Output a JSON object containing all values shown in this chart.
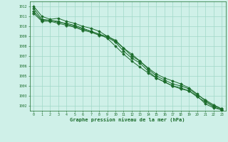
{
  "background_color": "#cff0e8",
  "grid_color": "#a0d8c8",
  "line_color": "#1a6b2a",
  "xlabel": "Graphe pression niveau de la mer (hPa)",
  "xlabel_color": "#1a6b2a",
  "tick_color": "#1a6b2a",
  "xlim": [
    -0.5,
    23.5
  ],
  "ylim": [
    1001.5,
    1012.5
  ],
  "yticks": [
    1002,
    1003,
    1004,
    1005,
    1006,
    1007,
    1008,
    1009,
    1010,
    1011,
    1012
  ],
  "xticks": [
    0,
    1,
    2,
    3,
    4,
    5,
    6,
    7,
    8,
    9,
    10,
    11,
    12,
    13,
    14,
    15,
    16,
    17,
    18,
    19,
    20,
    21,
    22,
    23
  ],
  "series": [
    {
      "x": [
        0,
        1,
        2,
        3,
        4,
        5,
        6,
        7,
        8,
        9,
        10,
        11,
        12,
        13,
        14,
        15,
        16,
        17,
        18,
        19,
        20,
        21,
        22,
        23
      ],
      "y": [
        1012.0,
        1011.0,
        1010.7,
        1010.8,
        1010.5,
        1010.3,
        1010.0,
        1009.8,
        1009.5,
        1009.0,
        1008.5,
        1007.8,
        1007.2,
        1006.5,
        1005.8,
        1005.2,
        1004.8,
        1004.5,
        1004.2,
        1003.8,
        1003.2,
        1002.5,
        1002.0,
        1001.7
      ],
      "marker": "D",
      "markersize": 1.8,
      "linewidth": 0.7
    },
    {
      "x": [
        0,
        1,
        2,
        3,
        4,
        5,
        6,
        7,
        8,
        9,
        10,
        11,
        12,
        13,
        14,
        15,
        16,
        17,
        18,
        19,
        20,
        21,
        22,
        23
      ],
      "y": [
        1011.8,
        1010.7,
        1010.6,
        1010.5,
        1010.2,
        1010.0,
        1009.7,
        1009.5,
        1009.2,
        1008.8,
        1008.0,
        1007.2,
        1006.5,
        1005.9,
        1005.3,
        1004.8,
        1004.4,
        1004.0,
        1003.8,
        1003.5,
        1003.0,
        1002.2,
        1001.8,
        1001.6
      ],
      "marker": "D",
      "markersize": 1.8,
      "linewidth": 0.7
    },
    {
      "x": [
        0,
        1,
        2,
        3,
        4,
        5,
        6,
        7,
        8,
        9,
        10,
        11,
        12,
        13,
        14,
        15,
        16,
        17,
        18,
        19,
        20,
        21,
        22,
        23
      ],
      "y": [
        1011.5,
        1010.6,
        1010.6,
        1010.4,
        1010.3,
        1010.1,
        1009.8,
        1009.5,
        1009.2,
        1009.0,
        1008.6,
        1007.8,
        1007.0,
        1006.5,
        1005.7,
        1005.0,
        1004.6,
        1004.2,
        1004.0,
        1003.7,
        1003.1,
        1002.6,
        1002.1,
        1001.7
      ],
      "marker": "P",
      "markersize": 2.5,
      "linewidth": 0.7
    },
    {
      "x": [
        0,
        1,
        2,
        3,
        4,
        5,
        6,
        7,
        8,
        9,
        10,
        11,
        12,
        13,
        14,
        15,
        16,
        17,
        18,
        19,
        20,
        21,
        22,
        23
      ],
      "y": [
        1011.3,
        1010.5,
        1010.5,
        1010.3,
        1010.1,
        1009.9,
        1009.6,
        1009.4,
        1009.1,
        1008.9,
        1008.4,
        1007.5,
        1006.8,
        1006.3,
        1005.5,
        1004.8,
        1004.4,
        1004.0,
        1003.7,
        1003.5,
        1002.9,
        1002.4,
        1001.9,
        1001.6
      ],
      "marker": "P",
      "markersize": 2.5,
      "linewidth": 0.7
    }
  ]
}
